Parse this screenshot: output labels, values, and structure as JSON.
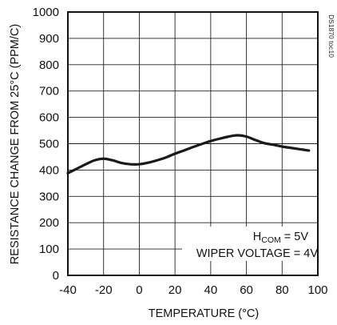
{
  "chart_data": {
    "type": "line",
    "title": "",
    "xlabel": "TEMPERATURE (°C)",
    "ylabel": "RESISTANCE CHANGE FROM 25°C (PPM/C)",
    "xlim": [
      -40,
      100
    ],
    "ylim": [
      0,
      1000
    ],
    "x_ticks": [
      -40,
      -20,
      0,
      20,
      40,
      60,
      80,
      100
    ],
    "y_ticks": [
      0,
      100,
      200,
      300,
      400,
      500,
      600,
      700,
      800,
      900,
      1000
    ],
    "grid": true,
    "series": [
      {
        "x": [
          -40,
          -35,
          -30,
          -25,
          -20,
          -15,
          -10,
          -5,
          0,
          5,
          10,
          15,
          20,
          25,
          30,
          35,
          40,
          45,
          50,
          55,
          60,
          65,
          70,
          75,
          80,
          85,
          90,
          95
        ],
        "y": [
          388,
          405,
          422,
          437,
          443,
          437,
          427,
          422,
          422,
          428,
          437,
          448,
          462,
          474,
          487,
          499,
          510,
          519,
          527,
          532,
          527,
          514,
          502,
          496,
          489,
          484,
          479,
          474
        ]
      }
    ],
    "annotations": {
      "hcom_main": "H",
      "hcom_sub": "COM",
      "hcom_value": " = 5V",
      "wiper": "WIPER VOLTAGE = 4V"
    },
    "figure_code": "DS1870 toc10"
  }
}
